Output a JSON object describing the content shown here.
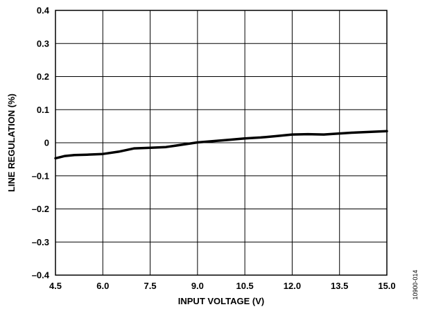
{
  "chart_data": {
    "type": "line",
    "title": "",
    "xlabel": "INPUT VOLTAGE (V)",
    "ylabel": "LINE REGULATION (%)",
    "xlim": [
      4.5,
      15.0
    ],
    "ylim": [
      -0.4,
      0.4
    ],
    "x_ticks": [
      "4.5",
      "6.0",
      "7.5",
      "9.0",
      "10.5",
      "12.0",
      "13.5",
      "15.0"
    ],
    "y_ticks": [
      "0.4",
      "0.3",
      "0.2",
      "0.1",
      "0",
      "–0.1",
      "–0.2",
      "–0.3",
      "–0.4"
    ],
    "x_tick_values": [
      4.5,
      6.0,
      7.5,
      9.0,
      10.5,
      12.0,
      13.5,
      15.0
    ],
    "y_tick_values": [
      0.4,
      0.3,
      0.2,
      0.1,
      0,
      -0.1,
      -0.2,
      -0.3,
      -0.4
    ],
    "grid": true,
    "legend": "none",
    "series": [
      {
        "x": [
          4.5,
          4.8,
          5.1,
          5.5,
          6.0,
          6.5,
          7.0,
          7.5,
          8.0,
          8.5,
          9.0,
          9.5,
          10.0,
          10.5,
          11.0,
          11.5,
          12.0,
          12.5,
          13.0,
          13.5,
          14.0,
          14.5,
          15.0
        ],
        "y": [
          -0.047,
          -0.04,
          -0.037,
          -0.036,
          -0.034,
          -0.027,
          -0.017,
          -0.015,
          -0.013,
          -0.006,
          0.001,
          0.005,
          0.009,
          0.013,
          0.016,
          0.02,
          0.025,
          0.026,
          0.025,
          0.028,
          0.031,
          0.033,
          0.035
        ]
      }
    ],
    "figure_code": "10900-014"
  }
}
